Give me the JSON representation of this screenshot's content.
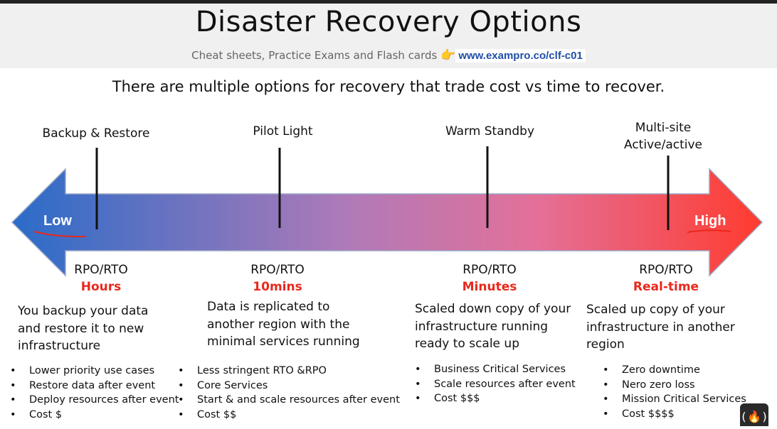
{
  "header": {
    "title": "Disaster Recovery Options",
    "subtitle": "Cheat sheets, Practice Exams and Flash cards",
    "pointer_icon": "pointing-hand-icon",
    "url": "www.exampro.co/clf-c01"
  },
  "intro": "There are multiple options for recovery that trade cost vs time to recover.",
  "scale": {
    "low_label": "Low",
    "high_label": "High",
    "colors": {
      "low": "#2a6cc8",
      "mid": "#c47aa8",
      "high": "#ff3b2f"
    }
  },
  "options": [
    {
      "name": "Backup & Restore",
      "rpo_label": "RPO/RTO",
      "rpo_value": "Hours",
      "description": [
        "You backup your data",
        "and restore it to new",
        "infrastructure"
      ],
      "bullets": [
        "Lower priority use cases",
        "Restore data after event",
        "Deploy resources after event",
        "Cost $"
      ]
    },
    {
      "name": "Pilot Light",
      "rpo_label": "RPO/RTO",
      "rpo_value": "10mins",
      "description": [
        "Data is replicated to",
        "another region with the",
        "minimal services running"
      ],
      "bullets": [
        "Less stringent RTO &RPO",
        "Core Services",
        "Start & and scale resources after event",
        "Cost $$"
      ]
    },
    {
      "name": "Warm Standby",
      "rpo_label": "RPO/RTO",
      "rpo_value": "Minutes",
      "description": [
        "Scaled down copy of your",
        "infrastructure running",
        "ready to scale up"
      ],
      "bullets": [
        "Business Critical Services",
        "Scale resources after event",
        "Cost $$$"
      ]
    },
    {
      "name_lines": [
        "Multi-site",
        "Active/active"
      ],
      "rpo_label": "RPO/RTO",
      "rpo_value": "Real-time",
      "description": [
        "Scaled up copy of your",
        "infrastructure in another",
        "region"
      ],
      "bullets": [
        "Zero downtime",
        "Nero zero loss",
        "Mission Critical Services",
        "Cost $$$$"
      ]
    }
  ],
  "logo_icon": "freecodecamp-logo-icon"
}
